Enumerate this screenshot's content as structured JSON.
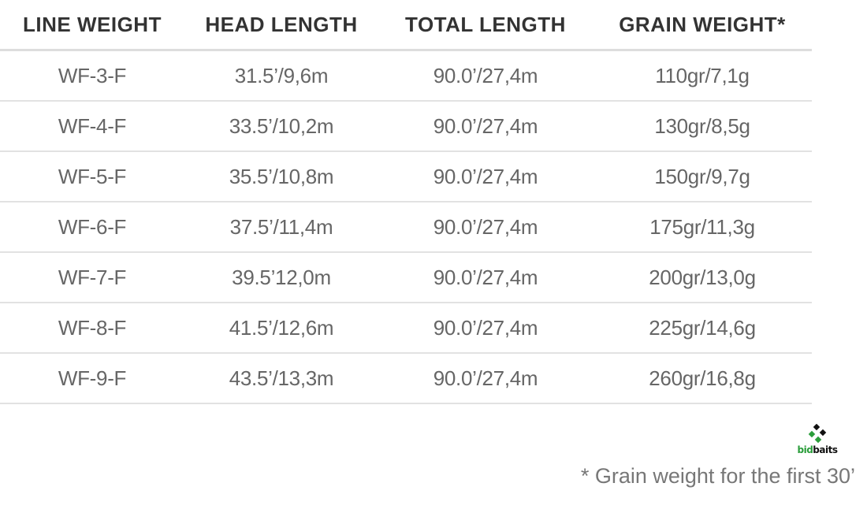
{
  "table": {
    "headers": [
      "LINE WEIGHT",
      "HEAD LENGTH",
      "TOTAL LENGTH",
      "GRAIN WEIGHT*"
    ],
    "rows": [
      [
        "WF-3-F",
        "31.5’/9,6m",
        "90.0’/27,4m",
        "110gr/7,1g"
      ],
      [
        "WF-4-F",
        "33.5’/10,2m",
        "90.0’/27,4m",
        "130gr/8,5g"
      ],
      [
        "WF-5-F",
        "35.5’/10,8m",
        "90.0’/27,4m",
        "150gr/9,7g"
      ],
      [
        "WF-6-F",
        "37.5’/11,4m",
        "90.0’/27,4m",
        "175gr/11,3g"
      ],
      [
        "WF-7-F",
        "39.5’12,0m",
        "90.0’/27,4m",
        "200gr/13,0g"
      ],
      [
        "WF-8-F",
        "41.5’/12,6m",
        "90.0’/27,4m",
        "225gr/14,6g"
      ],
      [
        "WF-9-F",
        "43.5’/13,3m",
        "90.0’/27,4m",
        "260gr/16,8g"
      ]
    ]
  },
  "footnote": "* Grain weight for the first 30’",
  "watermark": {
    "prefix": "bid",
    "suffix": "baits",
    "colors": {
      "green": "#2a9d3a",
      "black": "#111111"
    }
  }
}
